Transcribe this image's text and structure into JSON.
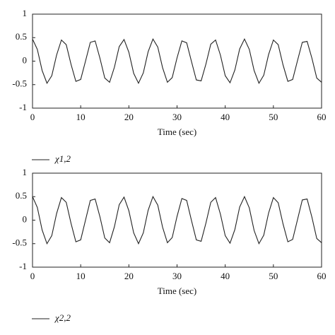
{
  "chart_data": [
    {
      "type": "line",
      "xlabel": "Time (sec)",
      "x": [
        0,
        1,
        2,
        3,
        4,
        5,
        6,
        7,
        8,
        9,
        10,
        11,
        12,
        13,
        14,
        15,
        16,
        17,
        18,
        19,
        20,
        21,
        22,
        23,
        24,
        25,
        26,
        27,
        28,
        29,
        30,
        31,
        32,
        33,
        34,
        35,
        36,
        37,
        38,
        39,
        40,
        41,
        42,
        43,
        44,
        45,
        46,
        47,
        48,
        49,
        50,
        51,
        52,
        53,
        54,
        55,
        56,
        57,
        58,
        59,
        60
      ],
      "series": [
        {
          "name": "χ1,2",
          "color": "#222222",
          "values": [
            0.47,
            0.25,
            -0.2,
            -0.47,
            -0.31,
            0.13,
            0.45,
            0.35,
            -0.07,
            -0.43,
            -0.39,
            0,
            0.4,
            0.43,
            0.06,
            -0.36,
            -0.45,
            -0.13,
            0.31,
            0.46,
            0.19,
            -0.26,
            -0.47,
            -0.25,
            0.2,
            0.47,
            0.3,
            -0.14,
            -0.45,
            -0.35,
            0.07,
            0.43,
            0.39,
            -0.01,
            -0.4,
            -0.42,
            -0.06,
            0.36,
            0.45,
            0.13,
            -0.31,
            -0.46,
            -0.19,
            0.26,
            0.47,
            0.25,
            -0.2,
            -0.47,
            -0.3,
            0.14,
            0.45,
            0.35,
            -0.08,
            -0.43,
            -0.39,
            0.01,
            0.4,
            0.42,
            0.06,
            -0.36,
            -0.45
          ]
        }
      ],
      "xlim": [
        0,
        60
      ],
      "xticks": [
        0,
        10,
        20,
        30,
        40,
        50,
        60
      ],
      "ylim": [
        -1,
        1
      ],
      "yticks": [
        -1,
        -0.5,
        0,
        0.5,
        1
      ]
    },
    {
      "type": "line",
      "xlabel": "Time (sec)",
      "x": [
        0,
        1,
        2,
        3,
        4,
        5,
        6,
        7,
        8,
        9,
        10,
        11,
        12,
        13,
        14,
        15,
        16,
        17,
        18,
        19,
        20,
        21,
        22,
        23,
        24,
        25,
        26,
        27,
        28,
        29,
        30,
        31,
        32,
        33,
        34,
        35,
        36,
        37,
        38,
        39,
        40,
        41,
        42,
        43,
        44,
        45,
        46,
        47,
        48,
        49,
        50,
        51,
        52,
        53,
        54,
        55,
        56,
        57,
        58,
        59,
        60
      ],
      "series": [
        {
          "name": "χ2,2",
          "color": "#222222",
          "values": [
            0.5,
            0.27,
            -0.21,
            -0.5,
            -0.33,
            0.14,
            0.48,
            0.38,
            -0.07,
            -0.46,
            -0.42,
            0,
            0.42,
            0.45,
            0.07,
            -0.38,
            -0.48,
            -0.14,
            0.33,
            0.49,
            0.2,
            -0.27,
            -0.5,
            -0.27,
            0.21,
            0.5,
            0.32,
            -0.15,
            -0.48,
            -0.37,
            0.08,
            0.46,
            0.42,
            -0.01,
            -0.42,
            -0.45,
            -0.06,
            0.38,
            0.48,
            0.13,
            -0.33,
            -0.49,
            -0.2,
            0.28,
            0.5,
            0.26,
            -0.22,
            -0.5,
            -0.32,
            0.15,
            0.48,
            0.37,
            -0.08,
            -0.46,
            -0.41,
            0.01,
            0.43,
            0.45,
            0.06,
            -0.39,
            -0.48
          ]
        }
      ],
      "xlim": [
        0,
        60
      ],
      "xticks": [
        0,
        10,
        20,
        30,
        40,
        50,
        60
      ],
      "ylim": [
        -1,
        1
      ],
      "yticks": [
        -1,
        -0.5,
        0,
        0.5,
        1
      ]
    }
  ]
}
